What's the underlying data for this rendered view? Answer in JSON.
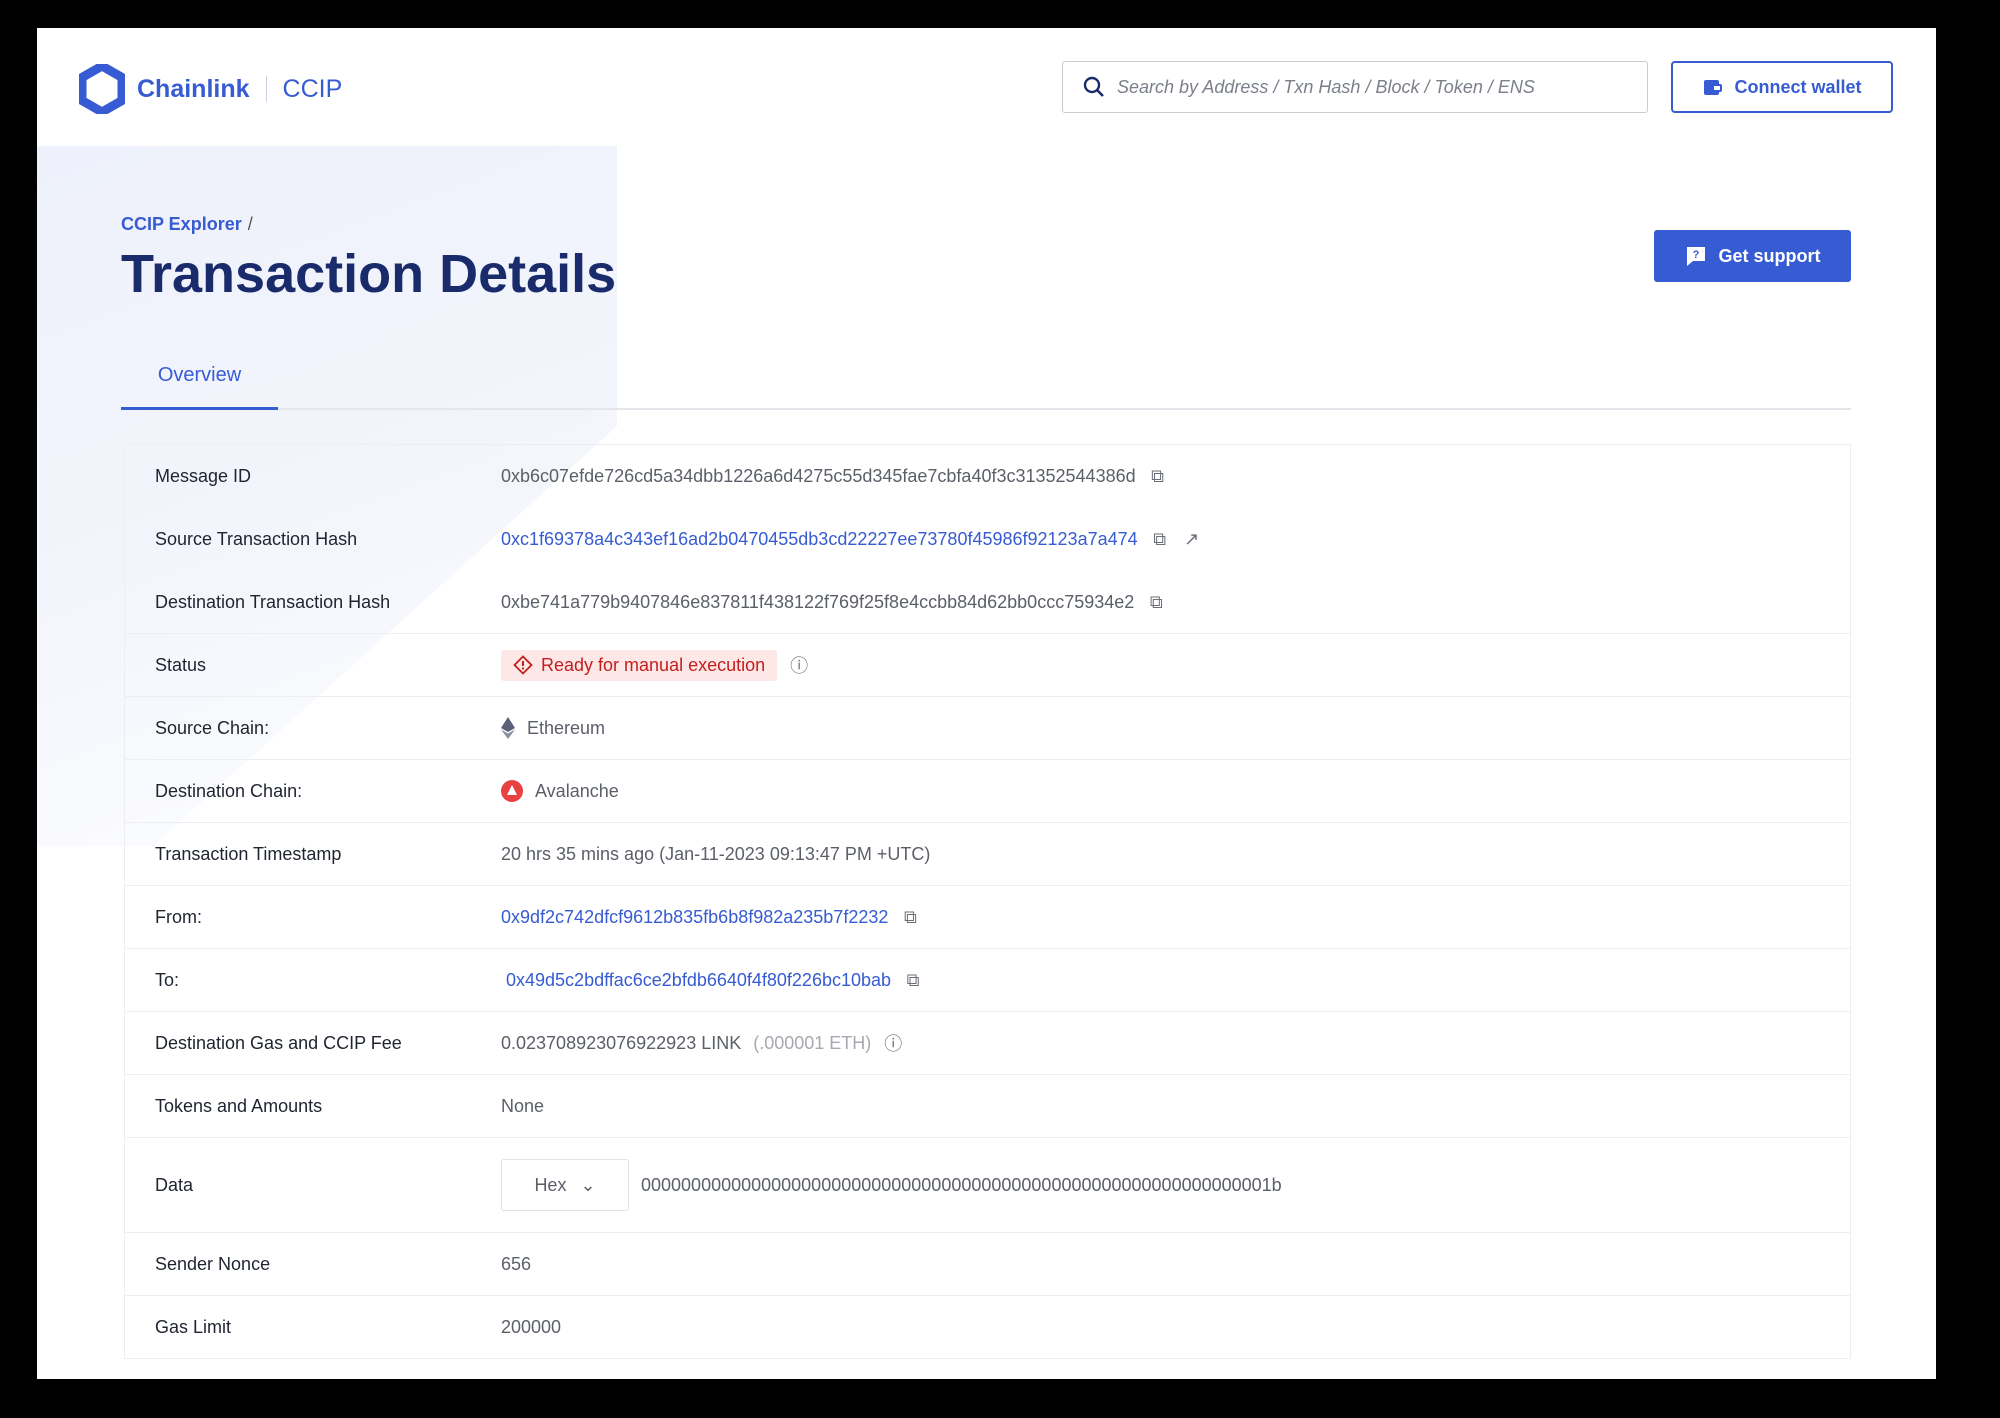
{
  "header": {
    "brand": "Chainlink",
    "product": "CCIP",
    "search_placeholder": "Search by Address / Txn Hash / Block / Token / ENS",
    "connect_wallet": "Connect wallet"
  },
  "breadcrumb": {
    "root": "CCIP Explorer",
    "separator": "/"
  },
  "page_title": "Transaction Details",
  "get_support": "Get support",
  "tabs": [
    {
      "label": "Overview",
      "active": true
    }
  ],
  "colors": {
    "accent": "#375bd2",
    "title": "#1a2b6b",
    "status_bg": "#fde7e7",
    "status_text": "#c41e1e"
  },
  "details": {
    "message_id": {
      "label": "Message ID",
      "value": "0xb6c07efde726cd5a34dbb1226a6d4275c55d345fae7cbfa40f3c31352544386d"
    },
    "source_tx": {
      "label": "Source Transaction Hash",
      "value": "0xc1f69378a4c343ef16ad2b0470455db3cd22227ee73780f45986f92123a7a474"
    },
    "dest_tx": {
      "label": "Destination Transaction Hash",
      "value": "0xbe741a779b9407846e837811f438122f769f25f8e4ccbb84d62bb0ccc75934e2"
    },
    "status": {
      "label": "Status",
      "value": "Ready for manual execution"
    },
    "source_chain": {
      "label": "Source Chain:",
      "value": "Ethereum"
    },
    "dest_chain": {
      "label": "Destination Chain:",
      "value": "Avalanche"
    },
    "timestamp": {
      "label": "Transaction Timestamp",
      "value": "20 hrs 35 mins ago (Jan-11-2023 09:13:47 PM +UTC)"
    },
    "from": {
      "label": "From:",
      "value": "0x9df2c742dfcf9612b835fb6b8f982a235b7f2232"
    },
    "to": {
      "label": "To:",
      "value": "0x49d5c2bdffac6ce2bfdb6640f4f80f226bc10bab"
    },
    "fee": {
      "label": "Destination Gas and CCIP Fee",
      "value": "0.023708923076922923 LINK",
      "secondary": "(.000001 ETH)"
    },
    "tokens": {
      "label": "Tokens and Amounts",
      "value": "None"
    },
    "data": {
      "label": "Data",
      "format": "Hex",
      "value": "000000000000000000000000000000000000000000000000000000000000001b"
    },
    "nonce": {
      "label": "Sender Nonce",
      "value": "656"
    },
    "gas_limit": {
      "label": "Gas Limit",
      "value": "200000"
    }
  }
}
